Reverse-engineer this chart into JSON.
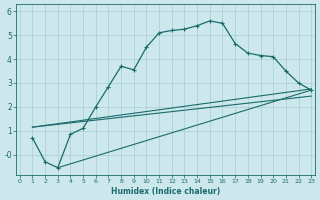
{
  "bg_color": "#cce8ed",
  "grid_color": "#a8cdd4",
  "line_color": "#1a6b6b",
  "xlabel": "Humidex (Indice chaleur)",
  "xlim": [
    -0.3,
    23.3
  ],
  "ylim": [
    -0.85,
    6.3
  ],
  "xticks": [
    0,
    1,
    2,
    3,
    4,
    5,
    6,
    7,
    8,
    9,
    10,
    11,
    12,
    13,
    14,
    15,
    16,
    17,
    18,
    19,
    20,
    21,
    22,
    23
  ],
  "yticks": [
    0,
    1,
    2,
    3,
    4,
    5,
    6
  ],
  "ytick_labels": [
    "-0",
    "1",
    "2",
    "3",
    "4",
    "5",
    "6"
  ],
  "curve1_x": [
    1,
    2,
    3,
    4,
    5,
    6,
    7,
    8,
    9,
    10,
    11,
    12,
    13,
    14,
    15,
    16,
    17,
    18,
    19,
    20,
    21,
    22,
    23
  ],
  "curve1_y": [
    0.7,
    -0.3,
    -0.55,
    0.85,
    1.1,
    2.0,
    2.85,
    3.7,
    3.55,
    4.5,
    5.1,
    5.2,
    5.25,
    5.4,
    5.6,
    5.5,
    4.65,
    4.25,
    4.15,
    4.1,
    3.5,
    3.0,
    2.7
  ],
  "line1_x": [
    1,
    23
  ],
  "line1_y": [
    1.15,
    2.45
  ],
  "line2_x": [
    1,
    23
  ],
  "line2_y": [
    1.15,
    2.75
  ],
  "line3_x": [
    3,
    23
  ],
  "line3_y": [
    -0.55,
    2.7
  ]
}
